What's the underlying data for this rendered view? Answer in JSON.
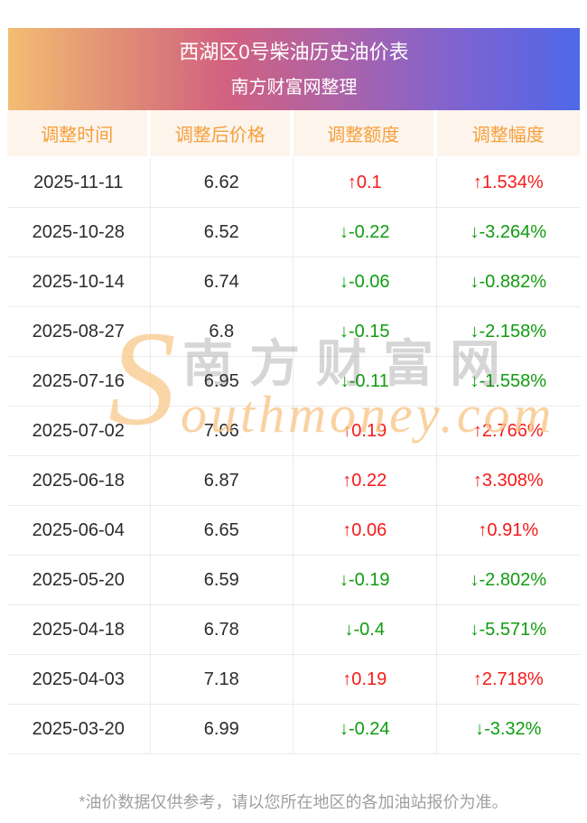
{
  "header": {
    "title": "西湖区0号柴油历史油价表",
    "subtitle": "南方财富网整理"
  },
  "table": {
    "columns": [
      "调整时间",
      "调整后价格",
      "调整额度",
      "调整幅度"
    ],
    "rows": [
      {
        "date": "2025-11-11",
        "price": "6.62",
        "change": "0.1",
        "pct": "1.534%",
        "direction": "up"
      },
      {
        "date": "2025-10-28",
        "price": "6.52",
        "change": "-0.22",
        "pct": "-3.264%",
        "direction": "down"
      },
      {
        "date": "2025-10-14",
        "price": "6.74",
        "change": "-0.06",
        "pct": "-0.882%",
        "direction": "down"
      },
      {
        "date": "2025-08-27",
        "price": "6.8",
        "change": "-0.15",
        "pct": "-2.158%",
        "direction": "down"
      },
      {
        "date": "2025-07-16",
        "price": "6.95",
        "change": "-0.11",
        "pct": "-1.558%",
        "direction": "down"
      },
      {
        "date": "2025-07-02",
        "price": "7.06",
        "change": "0.19",
        "pct": "2.766%",
        "direction": "up"
      },
      {
        "date": "2025-06-18",
        "price": "6.87",
        "change": "0.22",
        "pct": "3.308%",
        "direction": "up"
      },
      {
        "date": "2025-06-04",
        "price": "6.65",
        "change": "0.06",
        "pct": "0.91%",
        "direction": "up"
      },
      {
        "date": "2025-05-20",
        "price": "6.59",
        "change": "-0.19",
        "pct": "-2.802%",
        "direction": "down"
      },
      {
        "date": "2025-04-18",
        "price": "6.78",
        "change": "-0.4",
        "pct": "-5.571%",
        "direction": "down"
      },
      {
        "date": "2025-04-03",
        "price": "7.18",
        "change": "0.19",
        "pct": "2.718%",
        "direction": "up"
      },
      {
        "date": "2025-03-20",
        "price": "6.99",
        "change": "-0.24",
        "pct": "-3.32%",
        "direction": "down"
      }
    ]
  },
  "arrows": {
    "up": "↑",
    "down": "↓"
  },
  "colors": {
    "up": "#f41a1a",
    "down": "#109c10",
    "accent": "#f5a03c"
  },
  "watermark": {
    "s": "S",
    "cn": "南方财富网",
    "en": "outhmoney.com"
  },
  "footer": {
    "note": "*油价数据仅供参考，请以您所在地区的各加油站报价为准。"
  },
  "chart_data": {
    "type": "table",
    "title": "西湖区0号柴油历史油价表",
    "subtitle": "南方财富网整理",
    "columns": [
      "调整时间",
      "调整后价格",
      "调整额度",
      "调整幅度"
    ],
    "rows": [
      [
        "2025-11-11",
        6.62,
        0.1,
        "1.534%"
      ],
      [
        "2025-10-28",
        6.52,
        -0.22,
        "-3.264%"
      ],
      [
        "2025-10-14",
        6.74,
        -0.06,
        "-0.882%"
      ],
      [
        "2025-08-27",
        6.8,
        -0.15,
        "-2.158%"
      ],
      [
        "2025-07-16",
        6.95,
        -0.11,
        "-1.558%"
      ],
      [
        "2025-07-02",
        7.06,
        0.19,
        "2.766%"
      ],
      [
        "2025-06-18",
        6.87,
        0.22,
        "3.308%"
      ],
      [
        "2025-06-04",
        6.65,
        0.06,
        "0.91%"
      ],
      [
        "2025-05-20",
        6.59,
        -0.19,
        "-2.802%"
      ],
      [
        "2025-04-18",
        6.78,
        -0.4,
        "-5.571%"
      ],
      [
        "2025-04-03",
        7.18,
        0.19,
        "2.718%"
      ],
      [
        "2025-03-20",
        6.99,
        -0.24,
        "-3.32%"
      ]
    ]
  }
}
